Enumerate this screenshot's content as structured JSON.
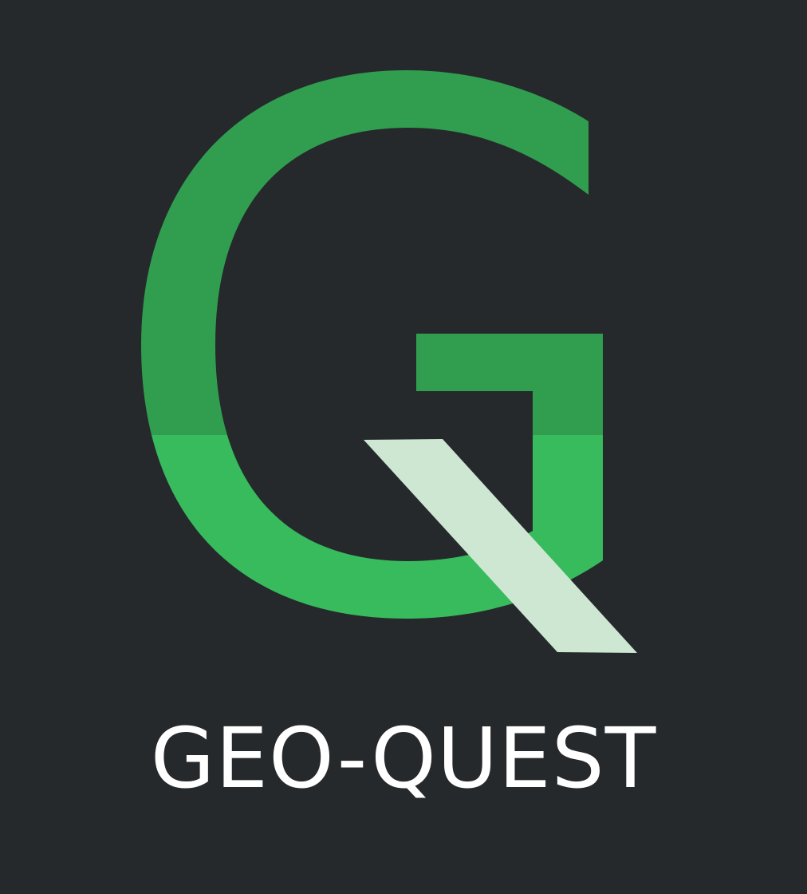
{
  "brand": {
    "name": "GEO-QUEST"
  },
  "logo": {
    "icon": "g-q-monogram-icon",
    "colors": {
      "background": "#25292c",
      "green_dark": "#319e4f",
      "green_light": "#38bb5c",
      "tail": "#cde7d3",
      "text": "#ffffff"
    }
  }
}
